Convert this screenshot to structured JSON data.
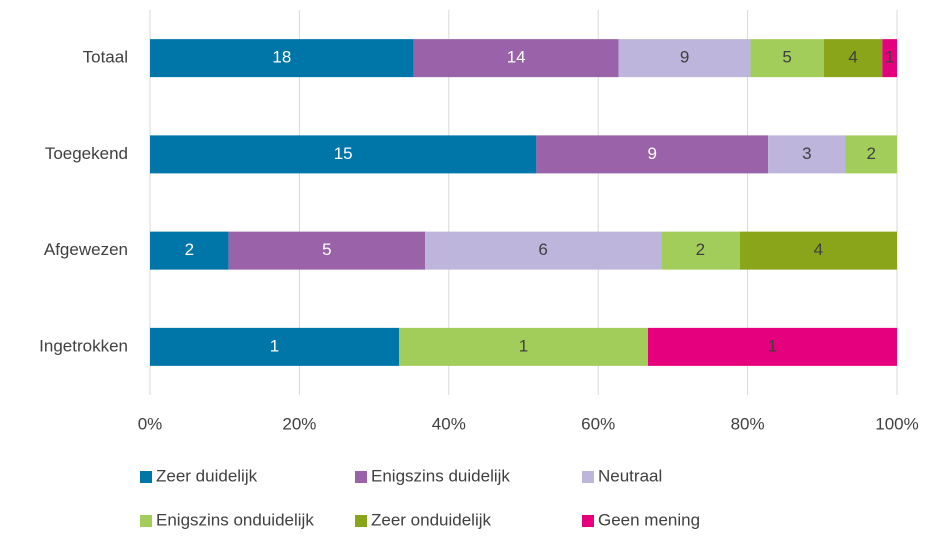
{
  "chart_data": {
    "type": "bar",
    "orientation": "horizontal",
    "stacking": "percent",
    "categories": [
      "Totaal",
      "Toegekend",
      "Afgewezen",
      "Ingetrokken"
    ],
    "series": [
      {
        "name": "Zeer duidelijk",
        "color": "#0076a8",
        "label_color": "#ffffff",
        "values": [
          18,
          15,
          2,
          1
        ]
      },
      {
        "name": "Enigszins duidelijk",
        "color": "#9a62a8",
        "label_color": "#ffffff",
        "values": [
          14,
          9,
          5,
          0
        ]
      },
      {
        "name": "Neutraal",
        "color": "#bdb5db",
        "label_color": "#404040",
        "values": [
          9,
          3,
          6,
          0
        ]
      },
      {
        "name": "Enigszins onduidelijk",
        "color": "#a3cd5b",
        "label_color": "#404040",
        "values": [
          5,
          2,
          2,
          1
        ]
      },
      {
        "name": "Zeer onduidelijk",
        "color": "#8aa51a",
        "label_color": "#404040",
        "values": [
          4,
          0,
          4,
          0
        ]
      },
      {
        "name": "Geen mening",
        "color": "#e5007d",
        "label_color": "#404040",
        "values": [
          1,
          0,
          0,
          1
        ]
      }
    ],
    "xlim": [
      0,
      100
    ],
    "xticks": [
      {
        "value": 0,
        "label": "0%"
      },
      {
        "value": 20,
        "label": "20%"
      },
      {
        "value": 40,
        "label": "40%"
      },
      {
        "value": 60,
        "label": "60%"
      },
      {
        "value": 80,
        "label": "80%"
      },
      {
        "value": 100,
        "label": "100%"
      }
    ],
    "grid": true,
    "legend": "bottom"
  }
}
